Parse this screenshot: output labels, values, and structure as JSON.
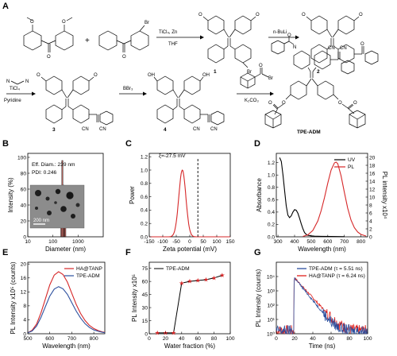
{
  "panel_labels": {
    "A": "A",
    "B": "B",
    "C": "C",
    "D": "D",
    "E": "E",
    "F": "F",
    "G": "G"
  },
  "scheme": {
    "atoms": {
      "O": "O",
      "OH": "OH",
      "Br": "Br",
      "N": "N",
      "CN": "CN",
      "NC": "NC"
    },
    "compounds": {
      "c1": "1",
      "c2": "2",
      "c3": "3",
      "c4": "4",
      "final": "TPE-ADM"
    },
    "reagents": {
      "r1_top": "TiCl₄, Zn",
      "r1_bottom": "THF",
      "r2_top": "n-BuLi",
      "r3_top": "TiCl₄",
      "r3_bottom": "Pyridine",
      "r4_top": "BBr₃",
      "r5_bottom": "K₂CO₃"
    }
  },
  "chart_data": [
    {
      "panel": "B",
      "type": "bar",
      "x_label": "Diameter (nm)",
      "y_label": "Intensity (%)",
      "xscale": "log",
      "xlim": [
        10,
        10000
      ],
      "ylim": [
        0,
        105
      ],
      "xticks": [
        {
          "v": 10,
          "l": "10"
        },
        {
          "v": 100,
          "l": "100"
        },
        {
          "v": 1000,
          "l": "1000"
        }
      ],
      "yticks": [
        0,
        20,
        40,
        60,
        80,
        100
      ],
      "bars": [
        {
          "x0": 205,
          "x1": 226,
          "v": 14
        },
        {
          "x0": 226,
          "x1": 248,
          "v": 96
        },
        {
          "x0": 248,
          "x1": 272,
          "v": 65
        },
        {
          "x0": 272,
          "x1": 298,
          "v": 43
        },
        {
          "x0": 298,
          "x1": 326,
          "v": 23
        }
      ],
      "bar_color": "#e07a72",
      "annotation": {
        "line1": "Eff. Diam.: 239 nm",
        "line2": "PDI: 0.246"
      },
      "inset_scale_text": "200 nm"
    },
    {
      "panel": "C",
      "type": "line",
      "x_label": "Zeta potential (mV)",
      "y_label": "Power",
      "xlim": [
        -150,
        150
      ],
      "ylim": [
        0,
        1.25
      ],
      "xticks": [
        -150,
        -100,
        -50,
        0,
        50,
        100,
        150
      ],
      "yticks": [
        {
          "v": 0,
          "l": "0.0"
        },
        {
          "v": 0.2,
          "l": "0.2"
        },
        {
          "v": 0.4,
          "l": "0.4"
        },
        {
          "v": 0.6,
          "l": "0.6"
        },
        {
          "v": 0.8,
          "l": "0.8"
        },
        {
          "v": 1.0,
          "l": "1.0"
        },
        {
          "v": 1.2,
          "l": "1.2"
        }
      ],
      "annotation": "ξ=-27.5 mV",
      "dashed_x": 30,
      "peak": {
        "center": -27.5,
        "width": 13,
        "height": 1.0
      },
      "color": "#d62728"
    },
    {
      "panel": "D",
      "type": "line",
      "x_label": "Wavelength (nm)",
      "y_label": "Absorbance",
      "y2_label": "PL intensity x10⁴",
      "xlim": [
        290,
        840
      ],
      "ylim": [
        0,
        1.35
      ],
      "y2lim": [
        0,
        21
      ],
      "xticks": [
        300,
        400,
        500,
        600,
        700,
        800
      ],
      "yticks": [
        {
          "v": 0,
          "l": "0.0"
        },
        {
          "v": 0.2,
          "l": "0.2"
        },
        {
          "v": 0.4,
          "l": "0.4"
        },
        {
          "v": 0.6,
          "l": "0.6"
        },
        {
          "v": 0.8,
          "l": "0.8"
        },
        {
          "v": 1.0,
          "l": "1.0"
        },
        {
          "v": 1.2,
          "l": "1.2"
        }
      ],
      "y2ticks": [
        0,
        2,
        4,
        6,
        8,
        10,
        12,
        14,
        16,
        18,
        20
      ],
      "series": [
        {
          "name": "UV",
          "color": "#000000",
          "x": [
            310,
            320,
            330,
            340,
            350,
            360,
            370,
            380,
            390,
            400,
            410,
            420,
            430,
            440,
            450,
            460,
            470,
            480,
            500,
            520,
            560,
            620,
            700
          ],
          "y": [
            1.28,
            1.22,
            1.0,
            0.74,
            0.5,
            0.35,
            0.31,
            0.34,
            0.4,
            0.44,
            0.43,
            0.38,
            0.3,
            0.21,
            0.13,
            0.07,
            0.04,
            0.025,
            0.015,
            0.01,
            0.008,
            0.005,
            0.003
          ]
        },
        {
          "name": "PL",
          "color": "#d62728",
          "axis": "y2",
          "x": [
            450,
            480,
            510,
            540,
            560,
            580,
            600,
            620,
            640,
            650,
            660,
            680,
            700,
            720,
            740,
            760,
            780,
            800,
            830
          ],
          "y": [
            0.1,
            0.5,
            1.6,
            4.0,
            6.6,
            9.8,
            13.5,
            16.8,
            18.6,
            18.8,
            18.4,
            15.4,
            11.2,
            7.2,
            4.2,
            2.3,
            1.2,
            0.6,
            0.2
          ]
        }
      ]
    },
    {
      "panel": "E",
      "type": "line",
      "x_label": "Wavelength (nm)",
      "y_label": "PL Intensity x10⁵ (counts)",
      "xlim": [
        500,
        850
      ],
      "ylim": [
        0,
        20.5
      ],
      "xticks": [
        500,
        600,
        700,
        800
      ],
      "yticks": [
        0,
        4,
        8,
        12,
        16,
        20
      ],
      "series": [
        {
          "name": "HA@TANP",
          "color": "#d62728",
          "x": [
            500,
            520,
            540,
            560,
            580,
            600,
            620,
            640,
            660,
            680,
            700,
            720,
            740,
            760,
            780,
            800,
            820,
            840,
            850
          ],
          "y": [
            0.3,
            1.0,
            2.8,
            6.0,
            10.0,
            14.0,
            16.8,
            17.8,
            17.0,
            14.8,
            11.6,
            8.4,
            5.8,
            3.8,
            2.4,
            1.5,
            0.9,
            0.5,
            0.4
          ]
        },
        {
          "name": "TPE-ADM",
          "color": "#2c4f9e",
          "x": [
            500,
            520,
            540,
            560,
            580,
            600,
            620,
            640,
            660,
            680,
            700,
            720,
            740,
            760,
            780,
            800,
            820,
            840,
            850
          ],
          "y": [
            0.3,
            0.8,
            2.2,
            4.7,
            7.8,
            10.8,
            12.8,
            13.5,
            12.9,
            11.3,
            8.9,
            6.5,
            4.5,
            2.9,
            1.8,
            1.1,
            0.7,
            0.4,
            0.3
          ]
        }
      ]
    },
    {
      "panel": "F",
      "type": "line",
      "x_label": "Water fraction (%)",
      "y_label": "PL Intensity x10⁵",
      "xlim": [
        0,
        100
      ],
      "ylim": [
        0,
        82
      ],
      "xticks": [
        0,
        20,
        40,
        60,
        80,
        100
      ],
      "yticks": [
        0,
        15,
        30,
        45,
        60,
        75
      ],
      "series": [
        {
          "name": "TPE-ADM",
          "color": "#000000",
          "marker_color": "#d62728",
          "x": [
            10,
            20,
            30,
            40,
            50,
            60,
            70,
            80,
            90
          ],
          "y": [
            1,
            1,
            1,
            58,
            60,
            61,
            62,
            64,
            67
          ]
        }
      ]
    },
    {
      "panel": "G",
      "type": "line",
      "x_label": "Time (ns)",
      "y_label": "PL Intensity (counts)",
      "yscale": "log",
      "xlim": [
        0,
        100
      ],
      "ylim": [
        1,
        100000
      ],
      "xticks": [
        0,
        20,
        40,
        60,
        80,
        100
      ],
      "yticks": [
        {
          "v": 1,
          "l": "10⁰"
        },
        {
          "v": 10,
          "l": "10¹"
        },
        {
          "v": 100,
          "l": "10²"
        },
        {
          "v": 1000,
          "l": "10³"
        },
        {
          "v": 10000,
          "l": "10⁴"
        }
      ],
      "series": [
        {
          "name": "TPE-ADM (τ = 5.51 ns)",
          "color": "#2c4f9e",
          "tau": 5.51,
          "t0": 20,
          "peak": 8000
        },
        {
          "name": "HA@TANP (τ = 6.24 ns)",
          "color": "#e0201c",
          "tau": 6.24,
          "t0": 20,
          "peak": 8000
        }
      ]
    }
  ]
}
